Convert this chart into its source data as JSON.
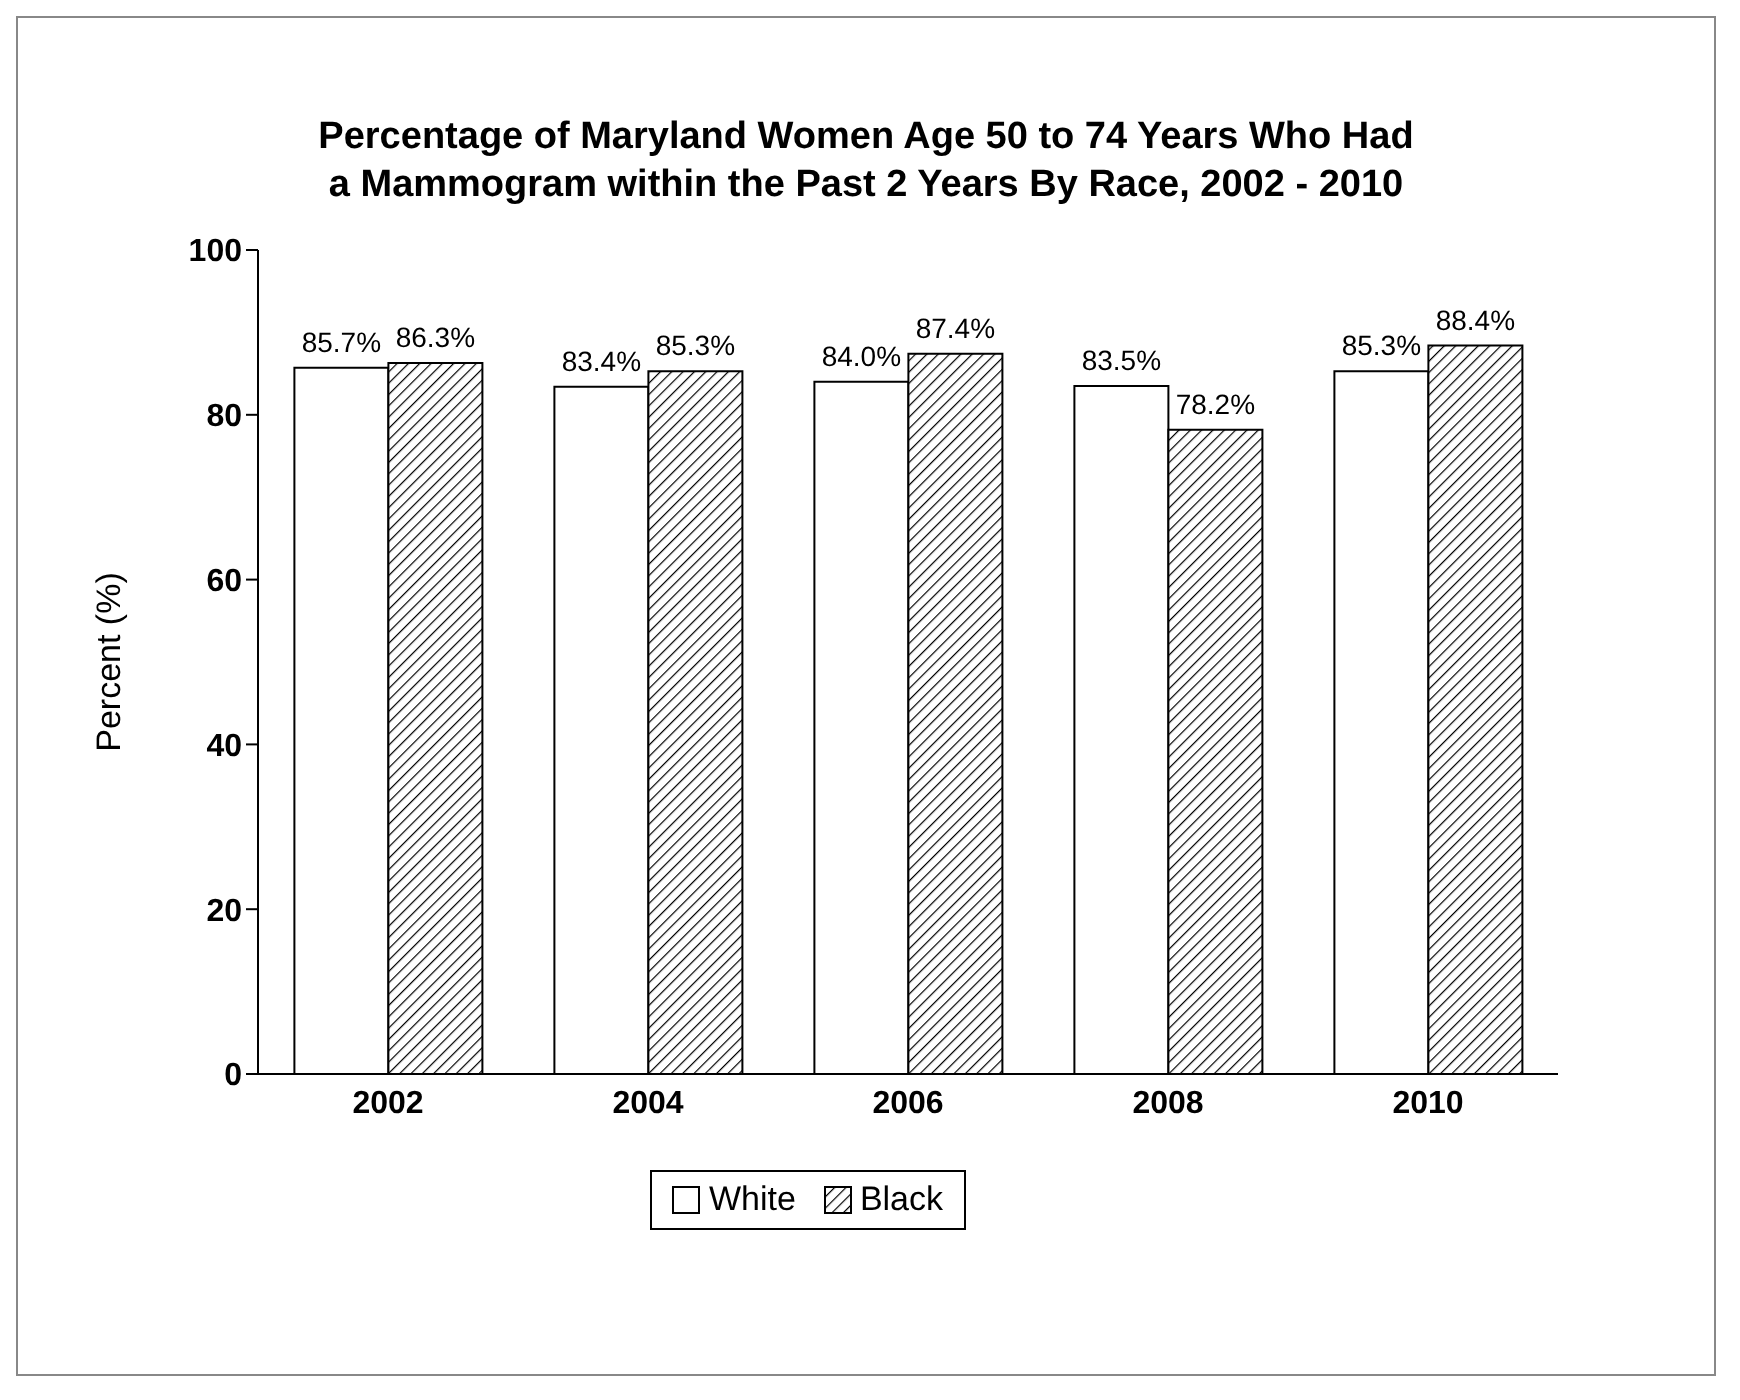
{
  "chart_data": {
    "type": "bar",
    "title": "Percentage of Maryland Women Age 50 to 74 Years Who Had a Mammogram within the Past 2 Years By Race, 2002 - 2010",
    "ylabel": "Percent (%)",
    "categories": [
      "2002",
      "2004",
      "2006",
      "2008",
      "2010"
    ],
    "series": [
      {
        "name": "White",
        "color": "#ffffff",
        "values": [
          85.7,
          83.4,
          84.0,
          83.5,
          85.3
        ],
        "value_labels": [
          "85.7%",
          "83.4%",
          "84.0%",
          "83.5%",
          "85.3%"
        ]
      },
      {
        "name": "Black",
        "color": "#000000",
        "values": [
          86.3,
          85.3,
          87.4,
          78.2,
          88.4
        ],
        "value_labels": [
          "86.3%",
          "85.3%",
          "87.4%",
          "78.2%",
          "88.4%"
        ]
      }
    ],
    "ylim": [
      0,
      100
    ],
    "yticks": [
      0,
      20,
      40,
      60,
      80,
      100
    ],
    "grid": false,
    "legend": "bottom"
  }
}
